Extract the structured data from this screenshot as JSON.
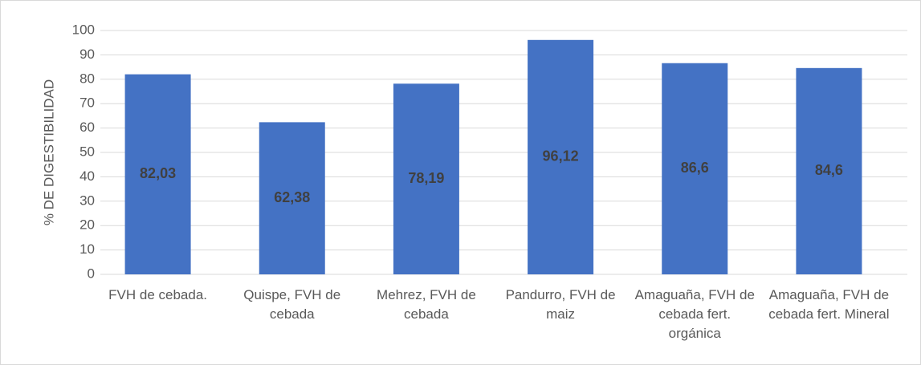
{
  "chart_data": {
    "type": "bar",
    "y_label": "% DE DIGESTIBILIDAD",
    "categories": [
      "FVH de cebada.",
      "Quispe, FVH de cebada",
      "Mehrez, FVH de cebada",
      "Pandurro, FVH de maiz",
      "Amaguaña, FVH de cebada fert. orgánica",
      "Amaguaña, FVH de cebada fert. Mineral"
    ],
    "values": [
      82.03,
      62.38,
      78.19,
      96.12,
      86.6,
      84.6
    ],
    "value_labels": [
      "82,03",
      "62,38",
      "78,19",
      "96,12",
      "86,6",
      "84,6"
    ],
    "color": "#4472c4",
    "ylim": [
      0,
      100
    ],
    "yticks": [
      0,
      10,
      20,
      30,
      40,
      50,
      60,
      70,
      80,
      90,
      100
    ],
    "grid": true
  }
}
